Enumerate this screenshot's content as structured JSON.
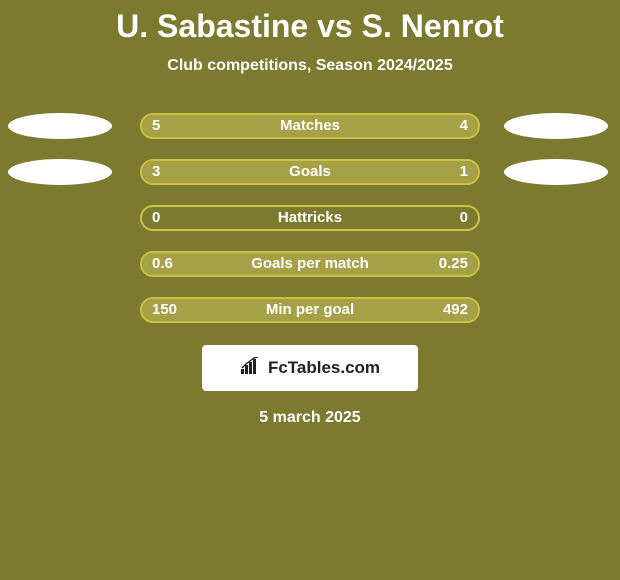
{
  "title": "U. Sabastine vs S. Nenrot",
  "subtitle": "Club competitions, Season 2024/2025",
  "date": "5 march 2025",
  "logo_text": "FcTables.com",
  "background_color": "#7b7a2e",
  "bar_border_color": "#c8c342",
  "bar_fill_color": "#a6a046",
  "text_color": "#ffffff",
  "ellipse_color": "#ffffff",
  "logo_bg": "#ffffff",
  "logo_text_color": "#222222",
  "rows": [
    {
      "label": "Matches",
      "left_val": "5",
      "right_val": "4",
      "left_pct": 55.6,
      "right_pct": 44.4,
      "show_ellipses": true
    },
    {
      "label": "Goals",
      "left_val": "3",
      "right_val": "1",
      "left_pct": 75.0,
      "right_pct": 25.0,
      "show_ellipses": true
    },
    {
      "label": "Hattricks",
      "left_val": "0",
      "right_val": "0",
      "left_pct": 0,
      "right_pct": 0,
      "show_ellipses": false
    },
    {
      "label": "Goals per match",
      "left_val": "0.6",
      "right_val": "0.25",
      "left_pct": 70.6,
      "right_pct": 29.4,
      "show_ellipses": false
    },
    {
      "label": "Min per goal",
      "left_val": "150",
      "right_val": "492",
      "left_pct": 23.4,
      "right_pct": 76.6,
      "show_ellipses": false
    }
  ]
}
